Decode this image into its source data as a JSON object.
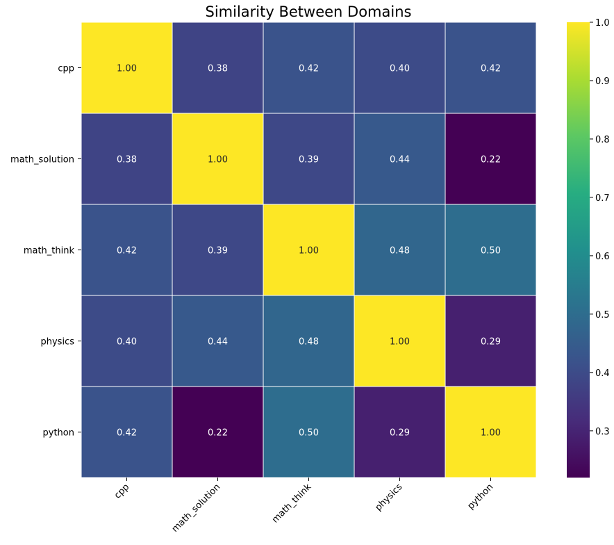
{
  "chart_data": {
    "type": "heatmap",
    "title": "Similarity Between Domains",
    "xlabel": "",
    "ylabel": "",
    "rows": [
      "cpp",
      "math_solution",
      "math_think",
      "physics",
      "python"
    ],
    "columns": [
      "cpp",
      "math_solution",
      "math_think",
      "physics",
      "python"
    ],
    "values": [
      [
        1.0,
        0.38,
        0.42,
        0.4,
        0.42
      ],
      [
        0.38,
        1.0,
        0.39,
        0.44,
        0.22
      ],
      [
        0.42,
        0.39,
        1.0,
        0.48,
        0.5
      ],
      [
        0.4,
        0.44,
        0.48,
        1.0,
        0.29
      ],
      [
        0.42,
        0.22,
        0.5,
        0.29,
        1.0
      ]
    ],
    "value_labels": [
      [
        "1.00",
        "0.38",
        "0.42",
        "0.40",
        "0.42"
      ],
      [
        "0.38",
        "1.00",
        "0.39",
        "0.44",
        "0.22"
      ],
      [
        "0.42",
        "0.39",
        "1.00",
        "0.48",
        "0.50"
      ],
      [
        "0.40",
        "0.44",
        "0.48",
        "1.00",
        "0.29"
      ],
      [
        "0.42",
        "0.22",
        "0.50",
        "0.29",
        "1.00"
      ]
    ],
    "colormap": "viridis",
    "color_range": [
      0.22,
      1.0
    ],
    "colorbar_ticks": [
      "0.3",
      "0.4",
      "0.5",
      "0.6",
      "0.7",
      "0.8",
      "0.9",
      "1.0"
    ],
    "colorbar_tick_values": [
      0.3,
      0.4,
      0.5,
      0.6,
      0.7,
      0.8,
      0.9,
      1.0
    ],
    "cell_border_color": "#ffffff",
    "grid": false,
    "legend": "colorbar-right"
  }
}
